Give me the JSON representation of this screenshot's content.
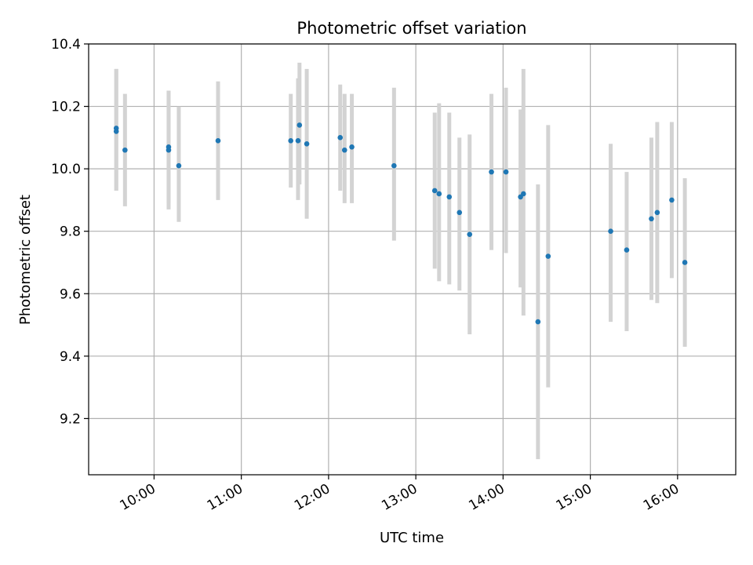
{
  "chart_data": {
    "type": "scatter",
    "title": "Photometric offset variation",
    "xlabel": "UTC time",
    "ylabel": "Photometric offset",
    "xlim": [
      "09:15",
      "16:40"
    ],
    "ylim": [
      9.02,
      10.4
    ],
    "x_ticks": [
      "10:00",
      "11:00",
      "12:00",
      "13:00",
      "14:00",
      "15:00",
      "16:00"
    ],
    "y_ticks": [
      "9.2",
      "9.4",
      "9.6",
      "9.8",
      "10.0",
      "10.2",
      "10.4"
    ],
    "grid": true,
    "colors": {
      "marker": "#1f77b4",
      "errorbar": "#d3d3d3",
      "grid": "#b0b0b0"
    },
    "points": [
      {
        "time": "09:34",
        "value": 10.13,
        "err_low": 9.93,
        "err_high": 10.32
      },
      {
        "time": "09:34",
        "value": 10.12,
        "err_low": 9.93,
        "err_high": 10.32
      },
      {
        "time": "09:40",
        "value": 10.06,
        "err_low": 9.88,
        "err_high": 10.24
      },
      {
        "time": "10:10",
        "value": 10.06,
        "err_low": 9.87,
        "err_high": 10.25
      },
      {
        "time": "10:10",
        "value": 10.07,
        "err_low": 9.89,
        "err_high": 10.25
      },
      {
        "time": "10:17",
        "value": 10.01,
        "err_low": 9.83,
        "err_high": 10.2
      },
      {
        "time": "10:44",
        "value": 10.09,
        "err_low": 9.9,
        "err_high": 10.28
      },
      {
        "time": "11:34",
        "value": 10.09,
        "err_low": 9.94,
        "err_high": 10.24
      },
      {
        "time": "11:39",
        "value": 10.09,
        "err_low": 9.9,
        "err_high": 10.29
      },
      {
        "time": "11:40",
        "value": 10.14,
        "err_low": 9.95,
        "err_high": 10.34
      },
      {
        "time": "11:45",
        "value": 10.08,
        "err_low": 9.84,
        "err_high": 10.32
      },
      {
        "time": "12:08",
        "value": 10.1,
        "err_low": 9.93,
        "err_high": 10.27
      },
      {
        "time": "12:11",
        "value": 10.06,
        "err_low": 9.89,
        "err_high": 10.24
      },
      {
        "time": "12:16",
        "value": 10.07,
        "err_low": 9.89,
        "err_high": 10.24
      },
      {
        "time": "12:45",
        "value": 10.01,
        "err_low": 9.77,
        "err_high": 10.26
      },
      {
        "time": "13:13",
        "value": 9.93,
        "err_low": 9.68,
        "err_high": 10.18
      },
      {
        "time": "13:16",
        "value": 9.92,
        "err_low": 9.64,
        "err_high": 10.21
      },
      {
        "time": "13:23",
        "value": 9.91,
        "err_low": 9.63,
        "err_high": 10.18
      },
      {
        "time": "13:30",
        "value": 9.86,
        "err_low": 9.61,
        "err_high": 10.1
      },
      {
        "time": "13:37",
        "value": 9.79,
        "err_low": 9.47,
        "err_high": 10.11
      },
      {
        "time": "13:52",
        "value": 9.99,
        "err_low": 9.74,
        "err_high": 10.24
      },
      {
        "time": "14:02",
        "value": 9.99,
        "err_low": 9.73,
        "err_high": 10.26
      },
      {
        "time": "14:12",
        "value": 9.91,
        "err_low": 9.62,
        "err_high": 10.19
      },
      {
        "time": "14:14",
        "value": 9.92,
        "err_low": 9.53,
        "err_high": 10.32
      },
      {
        "time": "14:24",
        "value": 9.51,
        "err_low": 9.07,
        "err_high": 9.95
      },
      {
        "time": "14:31",
        "value": 9.72,
        "err_low": 9.3,
        "err_high": 10.14
      },
      {
        "time": "15:14",
        "value": 9.8,
        "err_low": 9.51,
        "err_high": 10.08
      },
      {
        "time": "15:25",
        "value": 9.74,
        "err_low": 9.48,
        "err_high": 9.99
      },
      {
        "time": "15:42",
        "value": 9.84,
        "err_low": 9.58,
        "err_high": 10.1
      },
      {
        "time": "15:46",
        "value": 9.86,
        "err_low": 9.57,
        "err_high": 10.15
      },
      {
        "time": "15:56",
        "value": 9.9,
        "err_low": 9.65,
        "err_high": 10.15
      },
      {
        "time": "16:05",
        "value": 9.7,
        "err_low": 9.43,
        "err_high": 9.97
      }
    ]
  }
}
